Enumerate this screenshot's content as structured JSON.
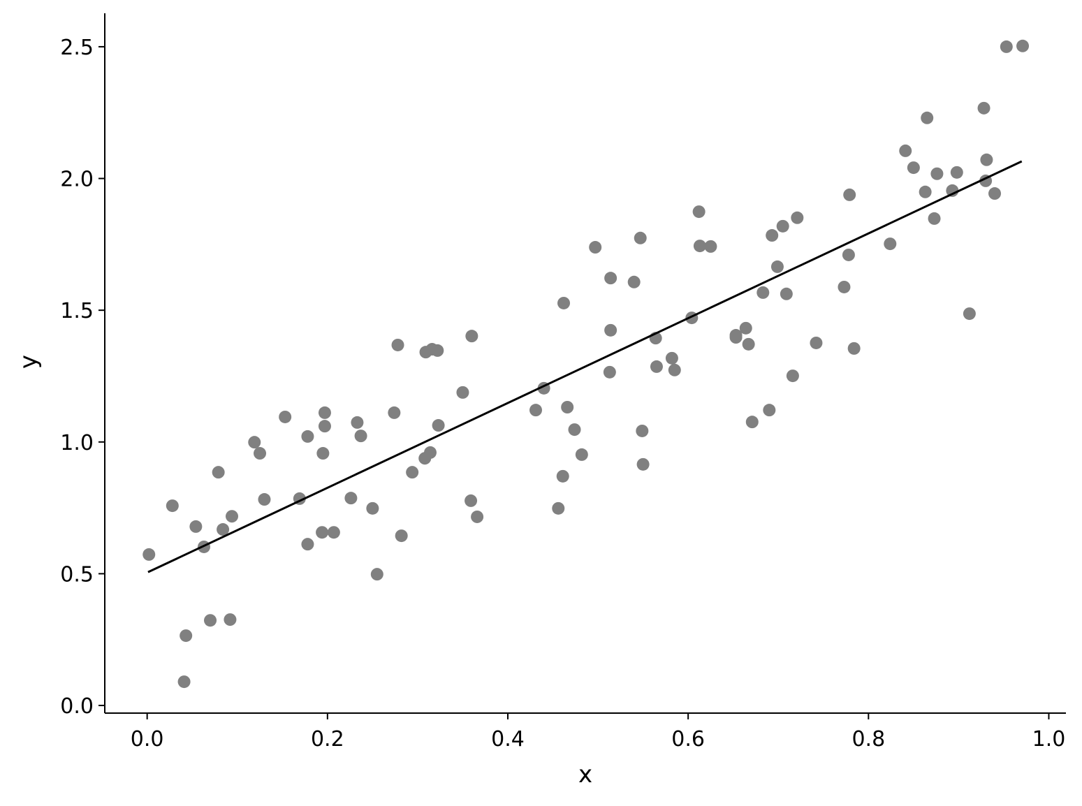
{
  "chart_data": {
    "type": "scatter",
    "xlabel": "x",
    "ylabel": "y",
    "xlim": [
      -0.047,
      1.019
    ],
    "ylim": [
      -0.029,
      2.627
    ],
    "xticks": [
      {
        "value": 0,
        "label": "0.0"
      },
      0.2,
      0.4,
      0.6,
      0.8,
      {
        "value": 1,
        "label": "1.0"
      }
    ],
    "yticks": [
      {
        "value": 0,
        "label": "0.0"
      },
      0.5,
      {
        "value": 1,
        "label": "1.0"
      },
      1.5,
      {
        "value": 2,
        "label": "2.0"
      },
      2.5
    ],
    "points": {
      "color": "#808080",
      "x": [
        0.002,
        0.028,
        0.041,
        0.043,
        0.054,
        0.063,
        0.07,
        0.079,
        0.084,
        0.092,
        0.094,
        0.119,
        0.125,
        0.13,
        0.153,
        0.169,
        0.178,
        0.178,
        0.195,
        0.197,
        0.197,
        0.194,
        0.207,
        0.226,
        0.233,
        0.237,
        0.25,
        0.255,
        0.274,
        0.278,
        0.282,
        0.294,
        0.308,
        0.309,
        0.314,
        0.316,
        0.322,
        0.323,
        0.35,
        0.359,
        0.36,
        0.366,
        0.431,
        0.44,
        0.456,
        0.461,
        0.462,
        0.466,
        0.474,
        0.482,
        0.497,
        0.513,
        0.514,
        0.514,
        0.54,
        0.547,
        0.549,
        0.55,
        0.564,
        0.565,
        0.582,
        0.585,
        0.604,
        0.612,
        0.613,
        0.625,
        0.653,
        0.653,
        0.664,
        0.667,
        0.671,
        0.683,
        0.69,
        0.693,
        0.699,
        0.705,
        0.709,
        0.716,
        0.721,
        0.742,
        0.773,
        0.778,
        0.779,
        0.784,
        0.824,
        0.841,
        0.85,
        0.863,
        0.865,
        0.873,
        0.876,
        0.893,
        0.898,
        0.912,
        0.928,
        0.93,
        0.931,
        0.94,
        0.953,
        0.971
      ],
      "y": [
        0.573,
        0.758,
        0.09,
        0.265,
        0.679,
        0.602,
        0.323,
        0.885,
        0.668,
        0.326,
        0.718,
        0.999,
        0.957,
        0.782,
        1.095,
        0.785,
        1.021,
        0.612,
        0.957,
        1.111,
        1.06,
        0.657,
        0.657,
        0.787,
        1.074,
        1.023,
        0.748,
        0.498,
        1.111,
        1.368,
        0.644,
        0.885,
        0.938,
        1.341,
        0.96,
        1.352,
        1.347,
        1.063,
        1.188,
        0.777,
        1.402,
        0.716,
        1.121,
        1.204,
        0.748,
        0.87,
        1.527,
        1.132,
        1.047,
        0.952,
        1.739,
        1.265,
        1.622,
        1.424,
        1.607,
        1.774,
        1.042,
        0.915,
        1.394,
        1.286,
        1.318,
        1.273,
        1.471,
        1.874,
        1.744,
        1.742,
        1.405,
        1.397,
        1.432,
        1.371,
        1.076,
        1.567,
        1.121,
        1.784,
        1.665,
        1.819,
        1.562,
        1.251,
        1.851,
        1.376,
        1.588,
        1.71,
        1.938,
        1.355,
        1.752,
        2.105,
        2.041,
        1.949,
        2.23,
        1.848,
        2.018,
        1.954,
        2.023,
        1.487,
        2.267,
        1.991,
        2.071,
        1.943,
        2.5,
        2.503
      ]
    },
    "fit_line": {
      "color": "#000000",
      "x": [
        0.001,
        0.97
      ],
      "y": [
        0.506,
        2.065
      ]
    }
  }
}
